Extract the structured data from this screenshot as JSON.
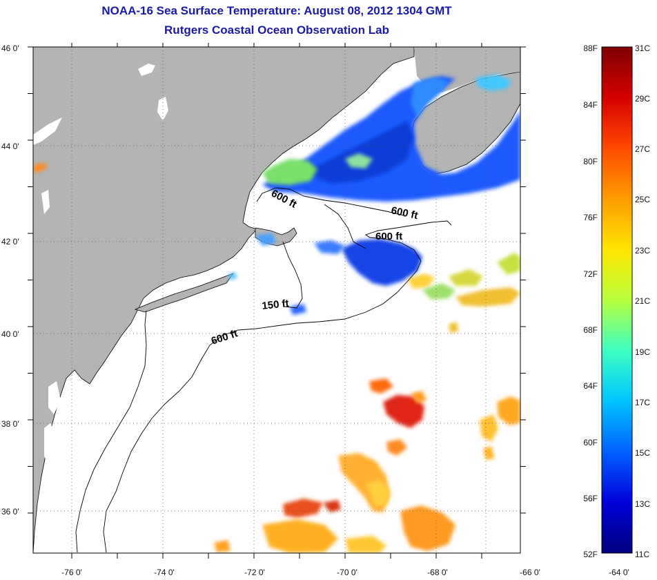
{
  "header": {
    "title_line1": "NOAA-16 Sea Surface Temperature:  August 08, 2012 1304 GMT",
    "title_line2": "Rutgers Coastal Ocean Observation Lab"
  },
  "map": {
    "longitude_labels": [
      "-76 0'",
      "-74 0'",
      "-72 0'",
      "-70 0'",
      "-68 0'",
      "-66 0'",
      "-64 0'"
    ],
    "latitude_labels": [
      "46 0'",
      "44 0'",
      "42 0'",
      "40 0'",
      "38 0'",
      "36 0'"
    ],
    "contour_labels": [
      "600 ft",
      "600 ft",
      "600 ft",
      "150 ft",
      "600 ft"
    ],
    "colors": {
      "land": "#b4b4b4",
      "ocean_nodata": "#ffffff",
      "grid": "#555555"
    }
  },
  "colorbar": {
    "fahrenheit_labels": [
      "88F",
      "84F",
      "80F",
      "76F",
      "72F",
      "68F",
      "64F",
      "60F",
      "56F",
      "52F"
    ],
    "celsius_labels": [
      "31C",
      "29C",
      "27C",
      "25C",
      "23C",
      "21C",
      "19C",
      "17C",
      "15C",
      "13C",
      "11C"
    ],
    "scale_colors": [
      "#7f0000",
      "#d40000",
      "#ff4a00",
      "#ff9c00",
      "#ffe600",
      "#b8ff3c",
      "#3cffc4",
      "#00c4ff",
      "#0060ff",
      "#0000d8",
      "#000080"
    ]
  }
}
